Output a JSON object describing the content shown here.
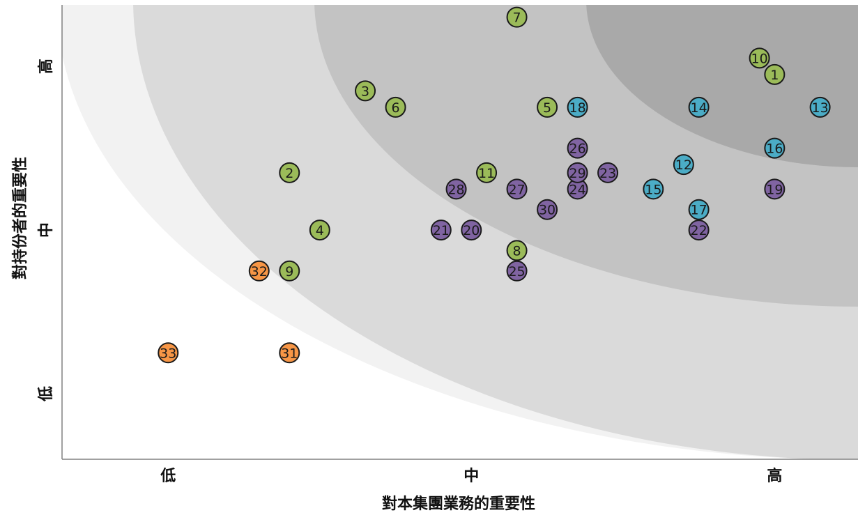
{
  "chart_data": {
    "type": "scatter",
    "xlabel": "對本集團業務的重要性",
    "ylabel": "對持份者的重要性",
    "x_ticks": [
      {
        "value": 1,
        "label": "低"
      },
      {
        "value": 3,
        "label": "中"
      },
      {
        "value": 5,
        "label": "高"
      }
    ],
    "y_ticks": [
      {
        "value": 1,
        "label": "低"
      },
      {
        "value": 3,
        "label": "中"
      },
      {
        "value": 5,
        "label": "高"
      }
    ],
    "xlim": [
      0.3,
      5.55
    ],
    "ylim": [
      0.2,
      5.75
    ],
    "background_zones": [
      {
        "level": 1,
        "color": "#f2f2f2"
      },
      {
        "level": 2,
        "color": "#dadada"
      },
      {
        "level": 3,
        "color": "#c3c3c3"
      },
      {
        "level": 4,
        "color": "#a9a9a9"
      }
    ],
    "category_colors": {
      "green": "#9bbb59",
      "teal": "#4bacc6",
      "purple": "#8064a2",
      "orange": "#f79646"
    },
    "points": [
      {
        "id": "1",
        "x": 5.0,
        "y": 4.9,
        "category": "green"
      },
      {
        "id": "2",
        "x": 1.8,
        "y": 3.7,
        "category": "green"
      },
      {
        "id": "3",
        "x": 2.3,
        "y": 4.7,
        "category": "green"
      },
      {
        "id": "4",
        "x": 2.0,
        "y": 3.0,
        "category": "green"
      },
      {
        "id": "5",
        "x": 3.5,
        "y": 4.5,
        "category": "green"
      },
      {
        "id": "6",
        "x": 2.5,
        "y": 4.5,
        "category": "green"
      },
      {
        "id": "7",
        "x": 3.3,
        "y": 5.6,
        "category": "green"
      },
      {
        "id": "8",
        "x": 3.3,
        "y": 2.75,
        "category": "green"
      },
      {
        "id": "9",
        "x": 1.8,
        "y": 2.5,
        "category": "green"
      },
      {
        "id": "10",
        "x": 4.9,
        "y": 5.1,
        "category": "green"
      },
      {
        "id": "11",
        "x": 3.1,
        "y": 3.7,
        "category": "green"
      },
      {
        "id": "12",
        "x": 4.4,
        "y": 3.8,
        "category": "teal"
      },
      {
        "id": "13",
        "x": 5.3,
        "y": 4.5,
        "category": "teal"
      },
      {
        "id": "14",
        "x": 4.5,
        "y": 4.5,
        "category": "teal"
      },
      {
        "id": "15",
        "x": 4.2,
        "y": 3.5,
        "category": "teal"
      },
      {
        "id": "16",
        "x": 5.0,
        "y": 4.0,
        "category": "teal"
      },
      {
        "id": "17",
        "x": 4.5,
        "y": 3.25,
        "category": "teal"
      },
      {
        "id": "18",
        "x": 3.7,
        "y": 4.5,
        "category": "teal"
      },
      {
        "id": "19",
        "x": 5.0,
        "y": 3.5,
        "category": "purple"
      },
      {
        "id": "20",
        "x": 3.0,
        "y": 3.0,
        "category": "purple"
      },
      {
        "id": "21",
        "x": 2.8,
        "y": 3.0,
        "category": "purple"
      },
      {
        "id": "22",
        "x": 4.5,
        "y": 3.0,
        "category": "purple"
      },
      {
        "id": "23",
        "x": 3.9,
        "y": 3.7,
        "category": "purple"
      },
      {
        "id": "24",
        "x": 3.7,
        "y": 3.5,
        "category": "purple"
      },
      {
        "id": "25",
        "x": 3.3,
        "y": 2.5,
        "category": "purple"
      },
      {
        "id": "26",
        "x": 3.7,
        "y": 4.0,
        "category": "purple"
      },
      {
        "id": "27",
        "x": 3.3,
        "y": 3.5,
        "category": "purple"
      },
      {
        "id": "28",
        "x": 2.9,
        "y": 3.5,
        "category": "purple"
      },
      {
        "id": "29",
        "x": 3.7,
        "y": 3.7,
        "category": "purple"
      },
      {
        "id": "30",
        "x": 3.5,
        "y": 3.25,
        "category": "purple"
      },
      {
        "id": "31",
        "x": 1.8,
        "y": 1.5,
        "category": "orange"
      },
      {
        "id": "32",
        "x": 1.6,
        "y": 2.5,
        "category": "orange"
      },
      {
        "id": "33",
        "x": 1.0,
        "y": 1.5,
        "category": "orange"
      }
    ]
  }
}
